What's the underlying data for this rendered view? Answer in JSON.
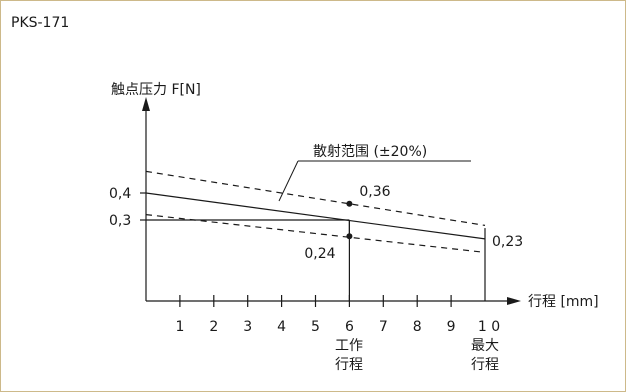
{
  "title": "PKS-171",
  "chart_data": {
    "type": "line",
    "title": "PKS-171",
    "ylabel": "触点压力 F[N]",
    "xlabel": "行程 [mm]",
    "x_ticks": [
      1,
      2,
      3,
      4,
      5,
      6,
      7,
      8,
      9,
      10
    ],
    "x_tick_labels": [
      "1",
      "2",
      "3",
      "4",
      "5",
      "6",
      "7",
      "8",
      "9",
      "1 0"
    ],
    "y_ticks": [
      0.4,
      0.3
    ],
    "y_tick_labels": [
      "0,4",
      "0,3"
    ],
    "xlim": [
      0,
      10
    ],
    "ylim": [
      0,
      0.6
    ],
    "series": [
      {
        "values": [
          0.4,
          0.23
        ],
        "x": [
          0,
          10
        ],
        "style": "solid"
      },
      {
        "values": [
          0.48,
          0.28
        ],
        "x": [
          0,
          10
        ],
        "style": "dashed"
      },
      {
        "values": [
          0.32,
          0.18
        ],
        "x": [
          0,
          10
        ],
        "style": "dashed"
      }
    ],
    "points": [
      {
        "x": 6,
        "y": 0.36,
        "label": "0,36"
      },
      {
        "x": 6,
        "y": 0.24,
        "label": "0,24"
      }
    ],
    "endpoint_label": {
      "x": 10,
      "y": 0.23,
      "label": "0,23"
    },
    "band_label": "散射范围 (±20%)",
    "working_travel": {
      "x": 6,
      "lines": [
        "工作",
        "行程"
      ]
    },
    "max_travel": {
      "x": 10,
      "lines": [
        "最大",
        "行程"
      ]
    },
    "grid": false
  }
}
